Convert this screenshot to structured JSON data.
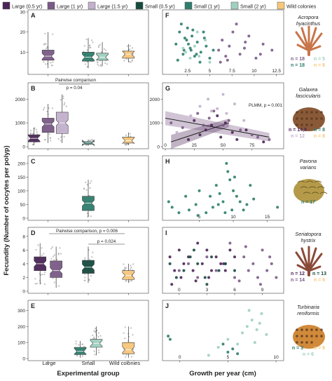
{
  "colors": {
    "large_0_5": "#4a2457",
    "large_1": "#7a5a86",
    "large_1_5": "#c2b0cc",
    "small_0_5": "#164a3f",
    "small_1": "#2e7d6c",
    "small_2": "#9fcfc0",
    "wild": "#f7c77a",
    "point_grey": "#a9a9a9"
  },
  "legend": [
    {
      "label": "Large (0.5 yr)",
      "color_key": "large_0_5"
    },
    {
      "label": "Large (1 yr)",
      "color_key": "large_1"
    },
    {
      "label": "Large (1.5 yr)",
      "color_key": "large_1_5"
    },
    {
      "label": "Small (0.5 yr)",
      "color_key": "small_0_5"
    },
    {
      "label": "Small (1 yr)",
      "color_key": "small_1"
    },
    {
      "label": "Small (2 yr)",
      "color_key": "small_2"
    },
    {
      "label": "Wild colonies",
      "color_key": "wild"
    }
  ],
  "y_axis_label": "Fecundity (Number of oocytes per polyp)",
  "left_xlabel": "Experimental group",
  "right_xlabel": "Growth per year (cm)",
  "left_categories": [
    "Large",
    "Small",
    "Wild colonies"
  ],
  "chart_data": [
    {
      "panel": "A",
      "type": "box",
      "ylim": [
        0,
        30
      ],
      "yticks": [
        10,
        20,
        30
      ],
      "boxes": [
        {
          "group": "Large (1 yr)",
          "x": 1,
          "color_key": "large_1",
          "q1": 6,
          "median": 8,
          "q3": 11,
          "lo": 2,
          "hi": 20
        },
        {
          "group": "Small (1 yr)",
          "x": 2,
          "color_key": "small_1",
          "q1": 5.5,
          "median": 7.5,
          "q3": 10,
          "lo": 2,
          "hi": 17
        },
        {
          "group": "Small (2 yr)",
          "x": 2.35,
          "color_key": "small_2",
          "q1": 6,
          "median": 7.5,
          "q3": 9.5,
          "lo": 3,
          "hi": 15
        },
        {
          "group": "Wild colonies",
          "x": 3,
          "color_key": "wild",
          "q1": 7,
          "median": 9,
          "q3": 10.5,
          "lo": 5,
          "hi": 14
        }
      ]
    },
    {
      "panel": "B",
      "type": "box",
      "ylim": [
        0,
        2600
      ],
      "yticks": [
        0,
        1000,
        2000
      ],
      "annotations": [
        {
          "text": "Pairwise comparison"
        },
        {
          "text": "p = 0.04"
        }
      ],
      "boxes": [
        {
          "group": "Large (0.5 yr)",
          "x": 0.65,
          "color_key": "large_0_5",
          "q1": 200,
          "median": 350,
          "q3": 500,
          "lo": 60,
          "hi": 800
        },
        {
          "group": "Large (1 yr)",
          "x": 1,
          "color_key": "large_1",
          "q1": 600,
          "median": 950,
          "q3": 1200,
          "lo": 150,
          "hi": 1800
        },
        {
          "group": "Large (1.5 yr)",
          "x": 1.35,
          "color_key": "large_1_5",
          "q1": 550,
          "median": 1000,
          "q3": 1450,
          "lo": 150,
          "hi": 2200
        },
        {
          "group": "Small (1 yr)",
          "x": 2,
          "color_key": "small_1",
          "q1": 100,
          "median": 160,
          "q3": 200,
          "lo": 60,
          "hi": 300
        },
        {
          "group": "Wild colonies",
          "x": 3,
          "color_key": "wild",
          "q1": 150,
          "median": 250,
          "q3": 400,
          "lo": 60,
          "hi": 600
        }
      ]
    },
    {
      "panel": "C",
      "type": "box",
      "ylim": [
        0,
        220
      ],
      "yticks": [
        0,
        50,
        100,
        150,
        200
      ],
      "boxes": [
        {
          "group": "Small (1 yr)",
          "x": 2,
          "color_key": "small_1",
          "q1": 28,
          "median": 55,
          "q3": 80,
          "lo": 5,
          "hi": 140
        }
      ]
    },
    {
      "panel": "D",
      "type": "box",
      "ylim": [
        0,
        9
      ],
      "yticks": [
        0,
        2,
        4,
        6,
        8
      ],
      "annotations": [
        {
          "text": "Pairwise comparison, p = 0.006"
        },
        {
          "text": "p = 0.024"
        }
      ],
      "boxes": [
        {
          "group": "Large (0.5 yr)",
          "x": 0.8,
          "color_key": "large_0_5",
          "q1": 3,
          "median": 4,
          "q3": 5,
          "lo": 1,
          "hi": 7
        },
        {
          "group": "Large (1 yr)",
          "x": 1.2,
          "color_key": "large_1",
          "q1": 2,
          "median": 3,
          "q3": 4.4,
          "lo": 0.5,
          "hi": 6.5
        },
        {
          "group": "Small (0.5 yr)",
          "x": 2,
          "color_key": "small_0_5",
          "q1": 2.6,
          "median": 3.5,
          "q3": 4.5,
          "lo": 1.2,
          "hi": 6.5
        },
        {
          "group": "Wild colonies",
          "x": 3,
          "color_key": "wild",
          "q1": 1.7,
          "median": 2.3,
          "q3": 3,
          "lo": 1.2,
          "hi": 4
        }
      ]
    },
    {
      "panel": "E",
      "type": "box",
      "ylim": [
        0,
        350
      ],
      "yticks": [
        0,
        100,
        200,
        300
      ],
      "boxes": [
        {
          "group": "Small (0.5 yr)",
          "x": 1.8,
          "color_key": "small_1",
          "q1": 25,
          "median": 45,
          "q3": 70,
          "lo": 5,
          "hi": 110
        },
        {
          "group": "Small (2 yr)",
          "x": 2.2,
          "color_key": "small_2",
          "q1": 70,
          "median": 95,
          "q3": 120,
          "lo": 20,
          "hi": 200
        },
        {
          "group": "Wild colonies",
          "x": 3,
          "color_key": "wild",
          "q1": 30,
          "median": 55,
          "q3": 100,
          "lo": 5,
          "hi": 200
        }
      ]
    },
    {
      "panel": "F",
      "type": "scatter",
      "xlim": [
        0,
        13
      ],
      "xticks": [
        2.5,
        5,
        7.5,
        10,
        12.5
      ],
      "ylim": [
        0,
        30
      ],
      "series": [
        {
          "color_key": "small_1",
          "x": [
            1.2,
            1.6,
            2.0,
            2.2,
            2.5,
            2.8,
            3.0,
            3.3,
            3.6,
            4.0,
            4.3,
            4.6,
            5.0,
            5.4,
            1.4,
            2.1,
            2.6,
            3.1,
            3.5,
            3.9,
            4.4,
            1.8,
            2.4,
            2.9
          ],
          "y": [
            14,
            20,
            9,
            17,
            22,
            12,
            18,
            8,
            15,
            10,
            20,
            13,
            7,
            11,
            6,
            11,
            14,
            21,
            9,
            5,
            17,
            24,
            16,
            11
          ]
        },
        {
          "color_key": "small_2",
          "x": [
            2.3,
            2.8,
            3.3,
            3.8,
            4.5,
            5.0,
            2.0,
            3.6
          ],
          "y": [
            10,
            7,
            13,
            8,
            16,
            5,
            12,
            20
          ]
        },
        {
          "color_key": "large_1",
          "x": [
            6.0,
            6.4,
            6.8,
            7.2,
            7.6,
            8.0,
            8.4,
            8.9,
            9.4,
            10.2,
            11.0,
            12.0,
            6.2,
            7.0,
            9.0,
            10.7
          ],
          "y": [
            11,
            16,
            8,
            13,
            20,
            24,
            9,
            12,
            18,
            7,
            14,
            11,
            5,
            6,
            15,
            9
          ]
        }
      ]
    },
    {
      "panel": "G",
      "type": "scatter",
      "xlim": [
        0,
        100
      ],
      "xticks": [
        0,
        25,
        50,
        75
      ],
      "ylim": [
        0,
        2600
      ],
      "yticks": [
        0,
        1000,
        2000
      ],
      "annotations": [
        {
          "text": "PLMM, p = 0.001"
        }
      ],
      "series": [
        {
          "color_key": "large_0_5",
          "x": [
            20,
            30,
            35,
            40,
            48,
            52,
            58,
            62,
            70,
            85,
            25,
            45
          ],
          "y": [
            300,
            500,
            700,
            900,
            400,
            1000,
            600,
            300,
            700,
            200,
            1100,
            1300
          ]
        },
        {
          "color_key": "large_1",
          "x": [
            5,
            15,
            28,
            38,
            42,
            50,
            55,
            65,
            75,
            80,
            90,
            33
          ],
          "y": [
            1000,
            800,
            1400,
            1200,
            1500,
            900,
            1100,
            700,
            500,
            400,
            300,
            900
          ]
        },
        {
          "color_key": "large_1_5",
          "x": [
            10,
            22,
            30,
            37,
            45,
            50,
            53,
            60,
            68,
            40
          ],
          "y": [
            600,
            1300,
            1700,
            2000,
            1600,
            2200,
            1400,
            1800,
            1100,
            1500
          ]
        }
      ],
      "trend_lines": [
        {
          "color_key": "large_0_5",
          "x": [
            5,
            55
          ],
          "y": [
            200,
            1000
          ]
        },
        {
          "color_key": "large_1",
          "x": [
            0,
            90
          ],
          "y": [
            1200,
            400
          ]
        }
      ]
    },
    {
      "panel": "H",
      "type": "scatter",
      "xlim": [
        0,
        17
      ],
      "xticks": [
        5,
        10,
        15
      ],
      "ylim": [
        0,
        220
      ],
      "series": [
        {
          "color_key": "small_1",
          "x": [
            0.5,
            1.0,
            2.0,
            3.0,
            3.5,
            4.5,
            5.0,
            6.0,
            7.0,
            7.5,
            8.0,
            8.5,
            9.0,
            9.2,
            9.5,
            10.0,
            10.5,
            11.0,
            11.5,
            12.0,
            12.5,
            13.0,
            16.5,
            8.8,
            9.8,
            10.2,
            4.8,
            6.6,
            7.8
          ],
          "y": [
            60,
            40,
            20,
            80,
            30,
            50,
            100,
            20,
            40,
            120,
            90,
            60,
            200,
            170,
            140,
            100,
            80,
            60,
            30,
            50,
            120,
            70,
            40,
            20,
            30,
            150,
            10,
            80,
            50
          ]
        }
      ]
    },
    {
      "panel": "I",
      "type": "scatter",
      "xlim": [
        -1.5,
        11
      ],
      "xticks": [
        0,
        3,
        6,
        9
      ],
      "ylim": [
        0,
        9
      ],
      "series": [
        {
          "color_key": "large_0_5",
          "x": [
            -1.0,
            -0.5,
            0.0,
            0.5,
            1.0,
            1.5,
            2.0,
            2.5,
            3.0,
            3.5,
            4.0,
            4.5,
            5.0,
            5.5,
            6.0,
            0.2,
            1.8,
            3.2,
            4.8,
            -0.8
          ],
          "y": [
            5,
            3,
            6,
            4,
            5,
            3,
            7,
            4,
            6,
            3,
            5,
            4,
            3,
            6,
            5,
            2,
            1.5,
            2,
            4,
            1
          ]
        },
        {
          "color_key": "large_1",
          "x": [
            0.0,
            1.0,
            2.0,
            3.0,
            4.0,
            5.0,
            6.0,
            7.0,
            7.5,
            8.0,
            8.5,
            9.0,
            9.5,
            10.0,
            10.5,
            5.5,
            6.5,
            7.2,
            8.8,
            9.8
          ],
          "y": [
            3,
            4,
            2,
            5,
            3,
            4,
            2,
            5,
            3,
            4,
            2,
            6,
            3,
            4,
            2,
            7,
            1.5,
            6.5,
            1,
            5
          ]
        },
        {
          "color_key": "small_0_5",
          "x": [
            -1.0,
            -0.3,
            0.5,
            1.2,
            2.0,
            2.8,
            3.5,
            4.3,
            5.0,
            6.0,
            1.6,
            3.0
          ],
          "y": [
            4,
            2,
            3,
            5,
            4,
            2,
            5,
            3,
            4,
            3,
            6,
            1
          ]
        }
      ]
    },
    {
      "panel": "J",
      "type": "scatter",
      "xlim": [
        -1.5,
        10.5
      ],
      "xticks": [
        0,
        5,
        10
      ],
      "ylim": [
        0,
        350
      ],
      "series": [
        {
          "color_key": "small_1",
          "x": [
            -1.2,
            -1.0,
            5.0,
            5.5,
            6.0,
            4.5
          ],
          "y": [
            140,
            120,
            40,
            60,
            30,
            90
          ]
        },
        {
          "color_key": "small_2",
          "x": [
            3.0,
            4.0,
            5.0,
            6.0,
            6.5,
            7.0,
            7.5,
            8.0,
            8.5,
            9.0,
            7.2,
            7.8,
            8.3
          ],
          "y": [
            20,
            70,
            120,
            90,
            160,
            200,
            240,
            180,
            280,
            150,
            300,
            100,
            220
          ]
        }
      ]
    }
  ],
  "species": [
    {
      "name_line1": "Acropora",
      "name_line2": "hyacinthus",
      "counts": [
        [
          {
            "text": "n = 18",
            "color_key": "large_1"
          },
          {
            "text": "n = 5",
            "color_key": "small_2"
          }
        ],
        [
          {
            "text": "n = 18",
            "color_key": "small_1"
          },
          {
            "text": "n = 8",
            "color_key": "wild"
          }
        ]
      ]
    },
    {
      "name_line1": "Galaxea",
      "name_line2": "fascicularis",
      "counts": [
        [
          {
            "text": "n = 14,9",
            "color_key": "large_0_5"
          },
          {
            "text": "n = 8",
            "color_key": "small_1"
          }
        ],
        [
          {
            "text": "n = 12",
            "color_key": "large_1_5"
          },
          {
            "text": "n = 8",
            "color_key": "wild"
          }
        ]
      ]
    },
    {
      "name_line1": "Pavona",
      "name_line2": "varians",
      "counts": [
        [
          {
            "text": "n = 17",
            "color_key": "small_1"
          }
        ]
      ]
    },
    {
      "name_line1": "Seriatopora",
      "name_line2": "hystrix",
      "counts": [
        [
          {
            "text": "n = 12",
            "color_key": "large_0_5"
          },
          {
            "text": "n = 13",
            "color_key": "small_0_5"
          }
        ],
        [
          {
            "text": "n = 14",
            "color_key": "large_1"
          },
          {
            "text": "n = 6",
            "color_key": "wild"
          }
        ]
      ]
    },
    {
      "name_line1": "Turbinaria",
      "name_line2": "reniformis",
      "counts": [
        [
          {
            "text": "n = 3",
            "color_key": "small_1"
          },
          {
            "text": "n = 9",
            "color_key": "wild"
          }
        ],
        [
          {
            "text": "n = 6",
            "color_key": "small_2"
          }
        ]
      ]
    }
  ],
  "coral_images": [
    {
      "icon": "branching-coral-icon",
      "color": "#c8754a"
    },
    {
      "icon": "massive-coral-icon",
      "color": "#8a5a38"
    },
    {
      "icon": "foliose-coral-icon",
      "color": "#b59a4a"
    },
    {
      "icon": "branching-coral-icon",
      "color": "#8a4a38"
    },
    {
      "icon": "massive-coral-icon",
      "color": "#d08a3a"
    }
  ]
}
